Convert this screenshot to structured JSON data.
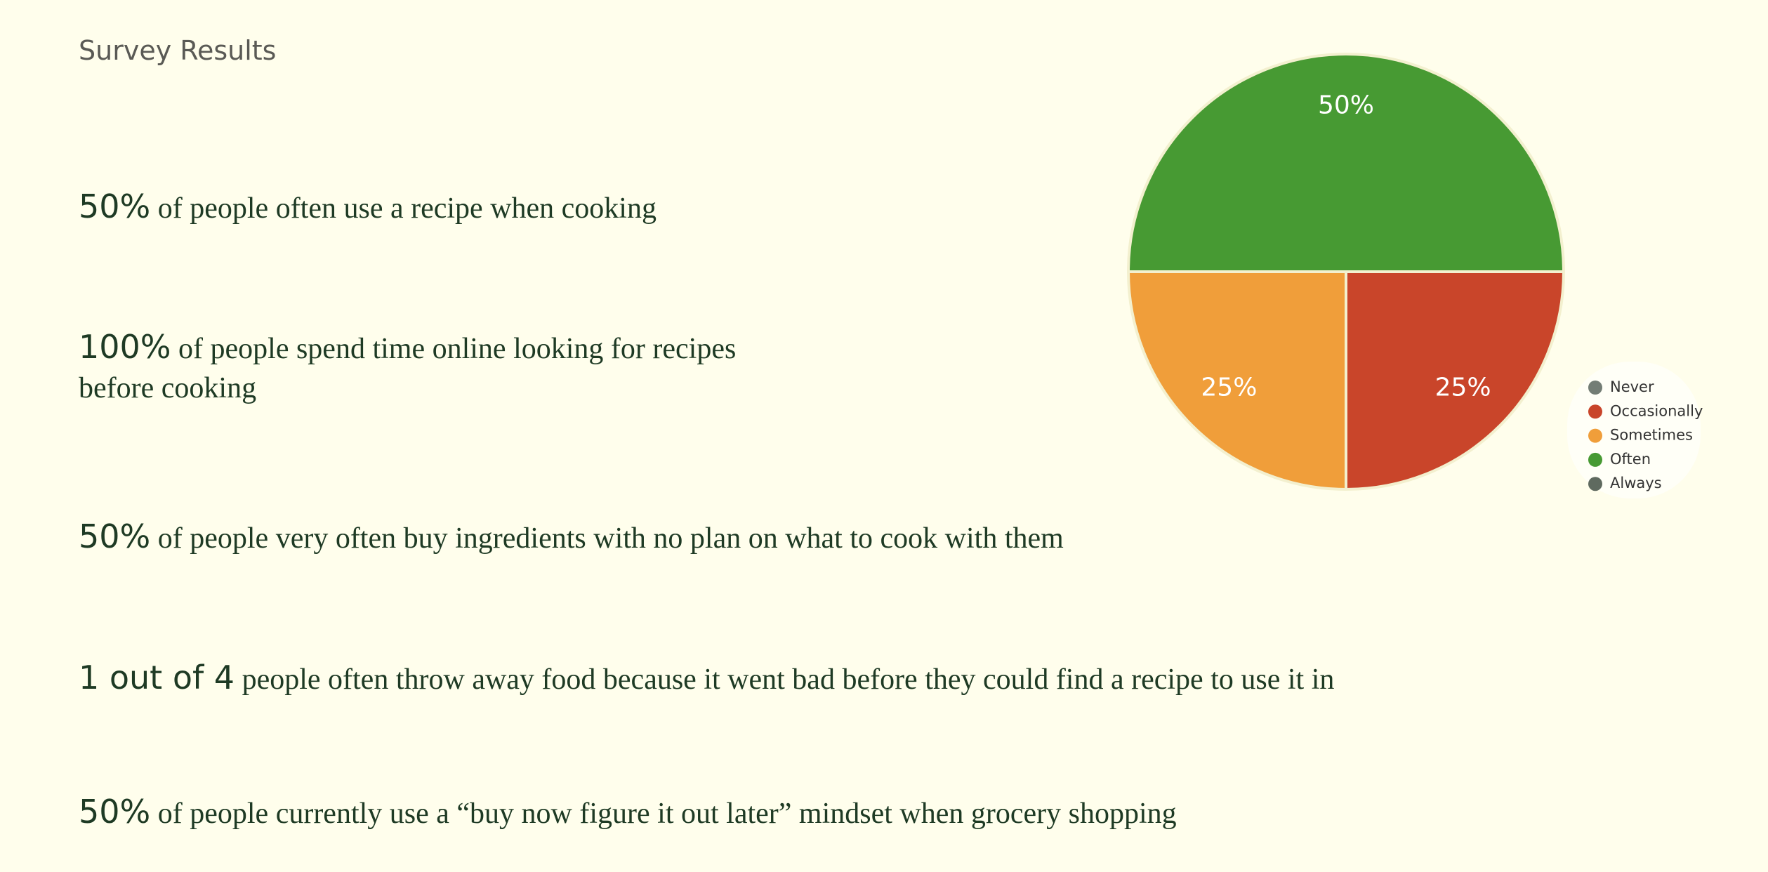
{
  "header": {
    "title": "Survey Results"
  },
  "stats": [
    {
      "highlight": "50%",
      "text": "of people often use a recipe when cooking"
    },
    {
      "highlight": "100%",
      "text": "of people spend time online looking for recipes before cooking"
    },
    {
      "highlight": "50%",
      "text": "of people very often buy ingredients with no plan on what to cook with them"
    },
    {
      "highlight": "1 out of 4",
      "text": "people often throw away food because it went bad before they could find a recipe to use it in"
    },
    {
      "highlight": "50%",
      "text": "of people currently use a “buy now figure it out later” mindset when grocery shopping"
    }
  ],
  "chart_data": {
    "type": "pie",
    "categories": [
      "Never",
      "Occasionally",
      "Sometimes",
      "Often",
      "Always"
    ],
    "values": [
      0,
      25,
      25,
      50,
      0
    ],
    "value_labels": [
      null,
      "25%",
      "25%",
      "50%",
      null
    ],
    "colors": [
      "#737d75",
      "#c9452a",
      "#f09e3a",
      "#479a33",
      "#5f6a5f"
    ],
    "legend": "right"
  }
}
